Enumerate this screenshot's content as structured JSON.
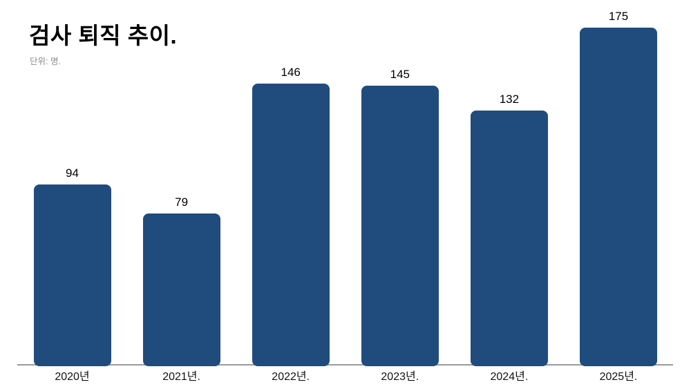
{
  "chart_data": {
    "type": "bar",
    "title": "검사 퇴직 추이.",
    "subtitle": "단위: 명.",
    "categories": [
      "2020년",
      "2021년.",
      "2022년.",
      "2023년.",
      "2024년.",
      "2025년."
    ],
    "values": [
      94,
      79,
      146,
      145,
      132,
      175
    ],
    "xlabel": "",
    "ylabel": "명",
    "ylim": [
      0,
      175
    ],
    "grid": false,
    "legend": "none",
    "data_labels": "above-bars",
    "colors": {
      "bar": "#1f4c7d",
      "axis_line": "#9a9a9a",
      "title": "#000000",
      "subtitle": "#8a8a8a",
      "value_label": "#000000",
      "tick_label": "#111111",
      "background": "#ffffff"
    }
  }
}
